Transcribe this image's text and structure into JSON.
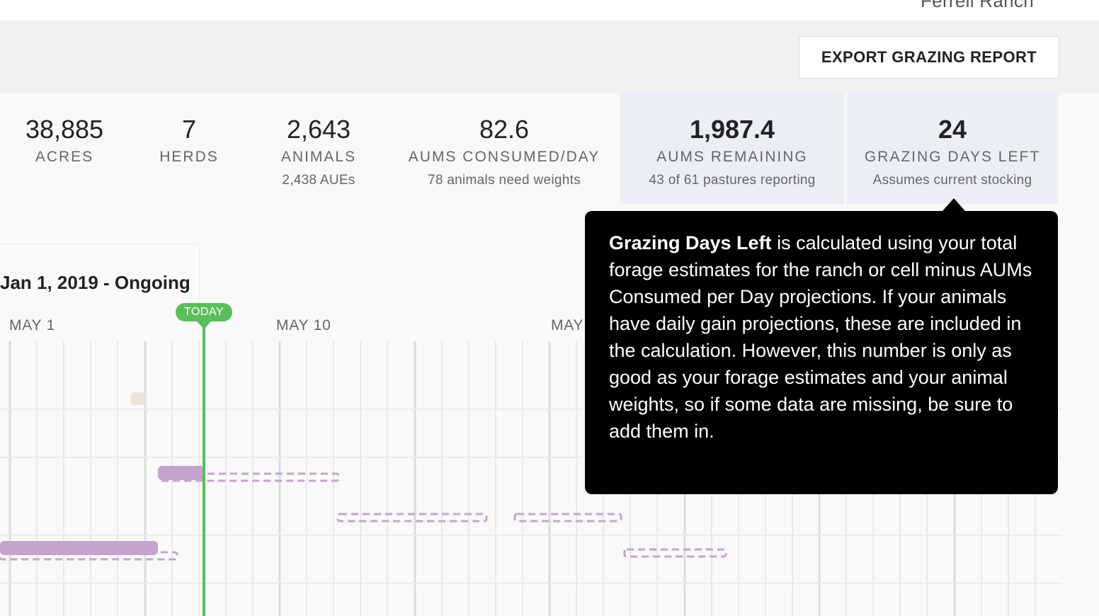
{
  "header": {
    "ranch_name": "Ferrell Ranch"
  },
  "toolbar": {
    "export_label": "EXPORT GRAZING REPORT"
  },
  "stats": [
    {
      "value": "38,885",
      "label": "ACRES",
      "sub": ""
    },
    {
      "value": "7",
      "label": "HERDS",
      "sub": ""
    },
    {
      "value": "2,643",
      "label": "ANIMALS",
      "sub": "2,438 AUEs"
    },
    {
      "value": "82.6",
      "label": "AUMS CONSUMED/DAY",
      "sub": "78 animals need weights"
    },
    {
      "value": "1,987.4",
      "label": "AUMS REMAINING",
      "sub": "43 of 61 pastures reporting"
    },
    {
      "value": "24",
      "label": "GRAZING DAYS LEFT",
      "sub": "Assumes current stocking"
    }
  ],
  "timeline": {
    "range_label": "Jan 1, 2019 - Ongoing",
    "today_label": "TODAY",
    "date_labels": [
      "MAY 1",
      "MAY 10",
      "MAY"
    ]
  },
  "tooltip": {
    "term": "Grazing Days Left",
    "text": " is calculated using your total forage estimates for the ranch or cell minus AUMs Consumed per Day projections. If your animals have daily gain projections, these are included in the calculation. However, this number is only as good as your forage estimates and your animal weights, so if some data are missing, be sure to add them in."
  },
  "colors": {
    "today_green": "#5cbd5a",
    "bar_purple": "#c5a3cf",
    "highlight_bg": "#ebeef4",
    "marker_beige": "#efe3d7"
  }
}
